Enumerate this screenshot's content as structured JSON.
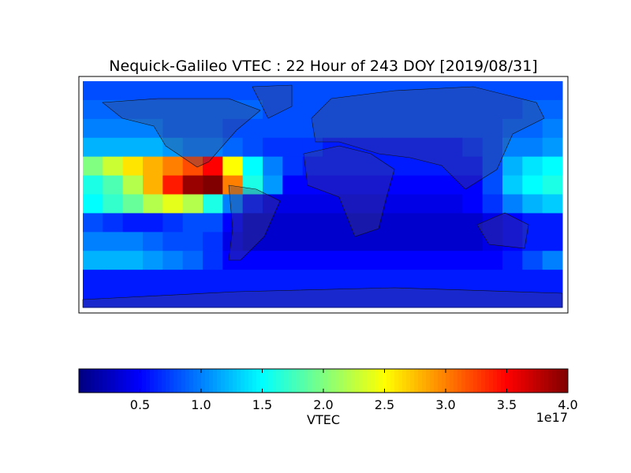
{
  "chart_data": {
    "type": "heatmap",
    "title": "Nequick-Galileo VTEC : 22 Hour of 243 DOY [2019/08/31]",
    "colormap": "jet",
    "values": [
      [
        0.8,
        0.8,
        0.8,
        0.8,
        0.8,
        0.8,
        0.8,
        0.8,
        0.8,
        0.8,
        0.8,
        0.8,
        0.8,
        0.8,
        0.8,
        0.8,
        0.8,
        0.8,
        0.8,
        0.8,
        0.8,
        0.8,
        0.8,
        0.8
      ],
      [
        0.9,
        0.9,
        0.9,
        0.9,
        0.9,
        0.9,
        0.9,
        0.9,
        0.9,
        0.8,
        0.8,
        0.8,
        0.8,
        0.8,
        0.8,
        0.8,
        0.8,
        0.8,
        0.8,
        0.8,
        0.8,
        0.8,
        0.9,
        0.9
      ],
      [
        1.0,
        1.0,
        1.0,
        1.0,
        0.9,
        0.9,
        0.9,
        0.8,
        0.8,
        0.8,
        0.8,
        0.8,
        0.8,
        0.8,
        0.8,
        0.8,
        0.8,
        0.8,
        0.8,
        0.8,
        0.8,
        0.9,
        0.9,
        1.0
      ],
      [
        1.2,
        1.2,
        1.2,
        1.2,
        1.1,
        1.0,
        1.0,
        0.9,
        0.8,
        0.7,
        0.7,
        0.7,
        0.6,
        0.6,
        0.6,
        0.6,
        0.6,
        0.6,
        0.6,
        0.7,
        0.8,
        1.0,
        1.0,
        1.1
      ],
      [
        2.0,
        2.3,
        2.6,
        2.8,
        3.0,
        3.2,
        3.5,
        2.5,
        1.5,
        1.0,
        0.7,
        0.6,
        0.6,
        0.6,
        0.6,
        0.6,
        0.6,
        0.6,
        0.6,
        0.6,
        0.8,
        1.2,
        1.4,
        1.5
      ],
      [
        1.6,
        1.8,
        2.2,
        2.8,
        3.4,
        3.9,
        4.0,
        3.0,
        1.6,
        1.1,
        0.5,
        0.5,
        0.5,
        0.5,
        0.5,
        0.5,
        0.5,
        0.5,
        0.5,
        0.5,
        0.8,
        1.3,
        1.5,
        1.6
      ],
      [
        1.5,
        1.7,
        1.9,
        2.2,
        2.4,
        2.2,
        1.6,
        1.0,
        0.6,
        0.4,
        0.4,
        0.4,
        0.4,
        0.4,
        0.4,
        0.4,
        0.4,
        0.4,
        0.4,
        0.5,
        0.7,
        1.0,
        1.2,
        1.3
      ],
      [
        0.8,
        0.7,
        0.6,
        0.6,
        0.7,
        0.8,
        0.8,
        0.5,
        0.3,
        0.3,
        0.3,
        0.3,
        0.3,
        0.3,
        0.3,
        0.3,
        0.3,
        0.3,
        0.3,
        0.3,
        0.4,
        0.5,
        0.6,
        0.6
      ],
      [
        1.0,
        1.0,
        1.0,
        0.9,
        0.8,
        0.8,
        0.7,
        0.4,
        0.3,
        0.3,
        0.3,
        0.3,
        0.3,
        0.3,
        0.3,
        0.3,
        0.3,
        0.3,
        0.3,
        0.3,
        0.4,
        0.5,
        0.6,
        0.6
      ],
      [
        1.2,
        1.2,
        1.2,
        1.1,
        1.0,
        0.9,
        0.7,
        0.5,
        0.5,
        0.5,
        0.5,
        0.5,
        0.5,
        0.5,
        0.5,
        0.5,
        0.5,
        0.5,
        0.5,
        0.5,
        0.5,
        0.6,
        0.8,
        1.0
      ],
      [
        0.6,
        0.6,
        0.6,
        0.6,
        0.6,
        0.6,
        0.6,
        0.6,
        0.6,
        0.6,
        0.6,
        0.6,
        0.6,
        0.6,
        0.6,
        0.6,
        0.6,
        0.6,
        0.6,
        0.6,
        0.6,
        0.6,
        0.6,
        0.6
      ],
      [
        0.6,
        0.6,
        0.6,
        0.6,
        0.6,
        0.6,
        0.6,
        0.6,
        0.6,
        0.6,
        0.6,
        0.6,
        0.6,
        0.6,
        0.6,
        0.6,
        0.6,
        0.6,
        0.6,
        0.6,
        0.6,
        0.6,
        0.6,
        0.6
      ]
    ],
    "colorbar": {
      "label": "VTEC",
      "offset_label": "1e17",
      "lim": [
        0,
        4.0
      ],
      "ticks": [
        0.5,
        {
          "value": 1,
          "label": "1.0"
        },
        1.5,
        {
          "value": 2,
          "label": "2.0"
        },
        2.5,
        {
          "value": 3,
          "label": "3.0"
        },
        3.5,
        {
          "value": 4,
          "label": "4.0"
        }
      ]
    }
  }
}
